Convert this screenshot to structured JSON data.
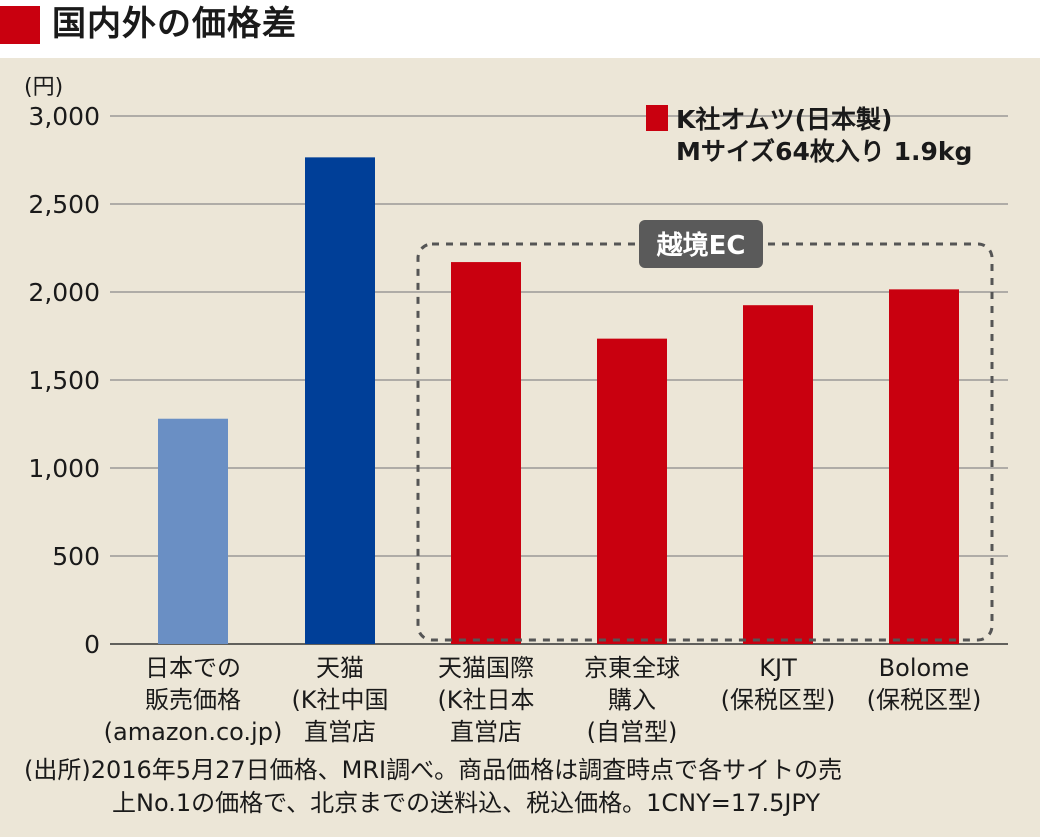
{
  "header": {
    "title": "国内外の価格差",
    "accent_color": "#c9000f"
  },
  "chart_data": {
    "type": "bar",
    "unit_label": "(円)",
    "ylim": [
      0,
      3000
    ],
    "yticks": [
      0,
      500,
      1000,
      1500,
      2000,
      2500,
      3000
    ],
    "ytick_labels": [
      "0",
      "500",
      "1,000",
      "1,500",
      "2,000",
      "2,500",
      "3,000"
    ],
    "grid": true,
    "categories": [
      [
        "日本での",
        "販売価格",
        "(amazon.co.jp)"
      ],
      [
        "天猫",
        "(K社中国",
        "直営店"
      ],
      [
        "天猫国際",
        "(K社日本",
        "直営店"
      ],
      [
        "京東全球",
        "購入",
        "(自営型)"
      ],
      [
        "KJT",
        "(保税区型)"
      ],
      [
        "Bolome",
        "(保税区型)"
      ]
    ],
    "values": [
      1280,
      2765,
      2170,
      1735,
      1925,
      2015
    ],
    "bar_colors": [
      "#6a8fc4",
      "#003f98",
      "#c9000f",
      "#c9000f",
      "#c9000f",
      "#c9000f"
    ],
    "legend": {
      "position": "top-right",
      "color": "#c9000f",
      "lines": [
        "K社オムツ(日本製)",
        "Mサイズ64枚入り 1.9kg"
      ]
    },
    "group_box": {
      "label": "越境EC",
      "categories_from": 2,
      "categories_to": 5
    }
  },
  "source_note": {
    "line1": "(出所)2016年5月27日価格、MRI調べ。商品価格は調査時点で各サイトの売",
    "line2": "上No.1の価格で、北京までの送料込、税込価格。1CNY=17.5JPY"
  }
}
